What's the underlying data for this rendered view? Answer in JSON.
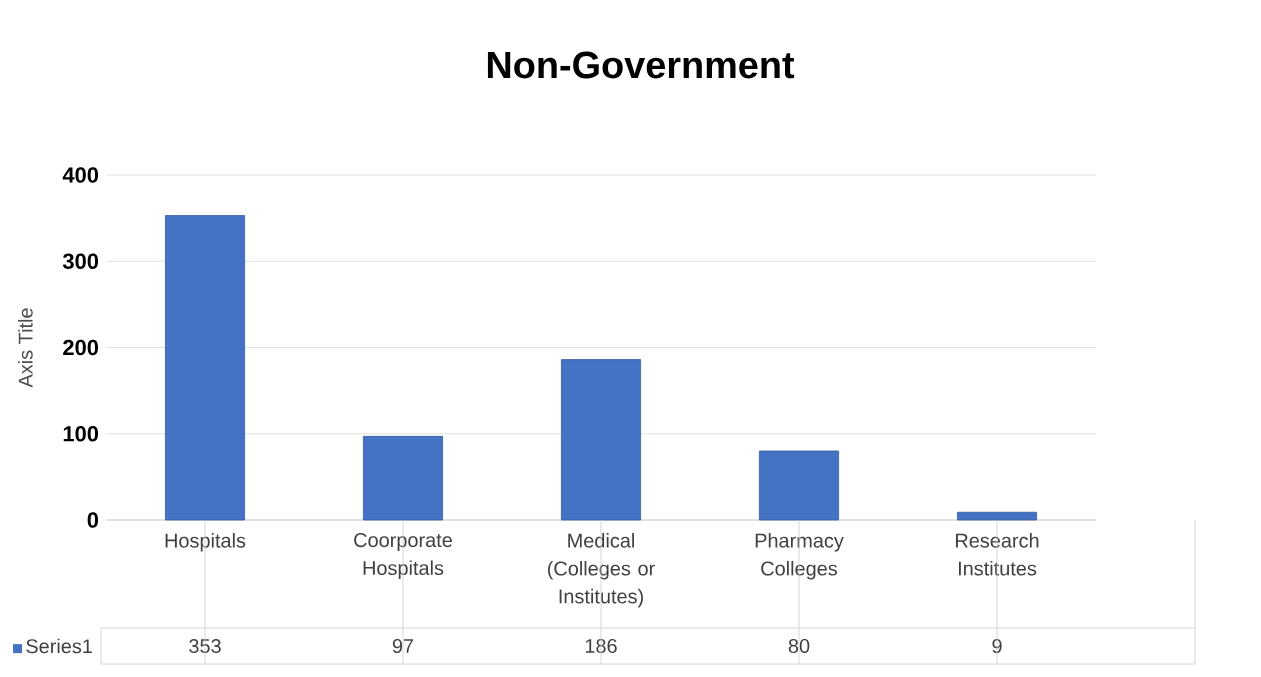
{
  "chart_data": {
    "type": "bar",
    "title": "Non-Government",
    "ylabel": "Axis Title",
    "categories": [
      "Hospitals",
      "Coorporate Hospitals",
      "Medical (Colleges or Institutes)",
      "Pharmacy Colleges",
      "Research Institutes"
    ],
    "series": [
      {
        "name": "Series1",
        "color": "#4472c4",
        "values": [
          353,
          97,
          186,
          80,
          9
        ]
      }
    ],
    "ylim": [
      0,
      400
    ],
    "yticks": [
      0,
      100,
      200,
      300,
      400
    ],
    "grid": "y",
    "data_labels": true
  }
}
